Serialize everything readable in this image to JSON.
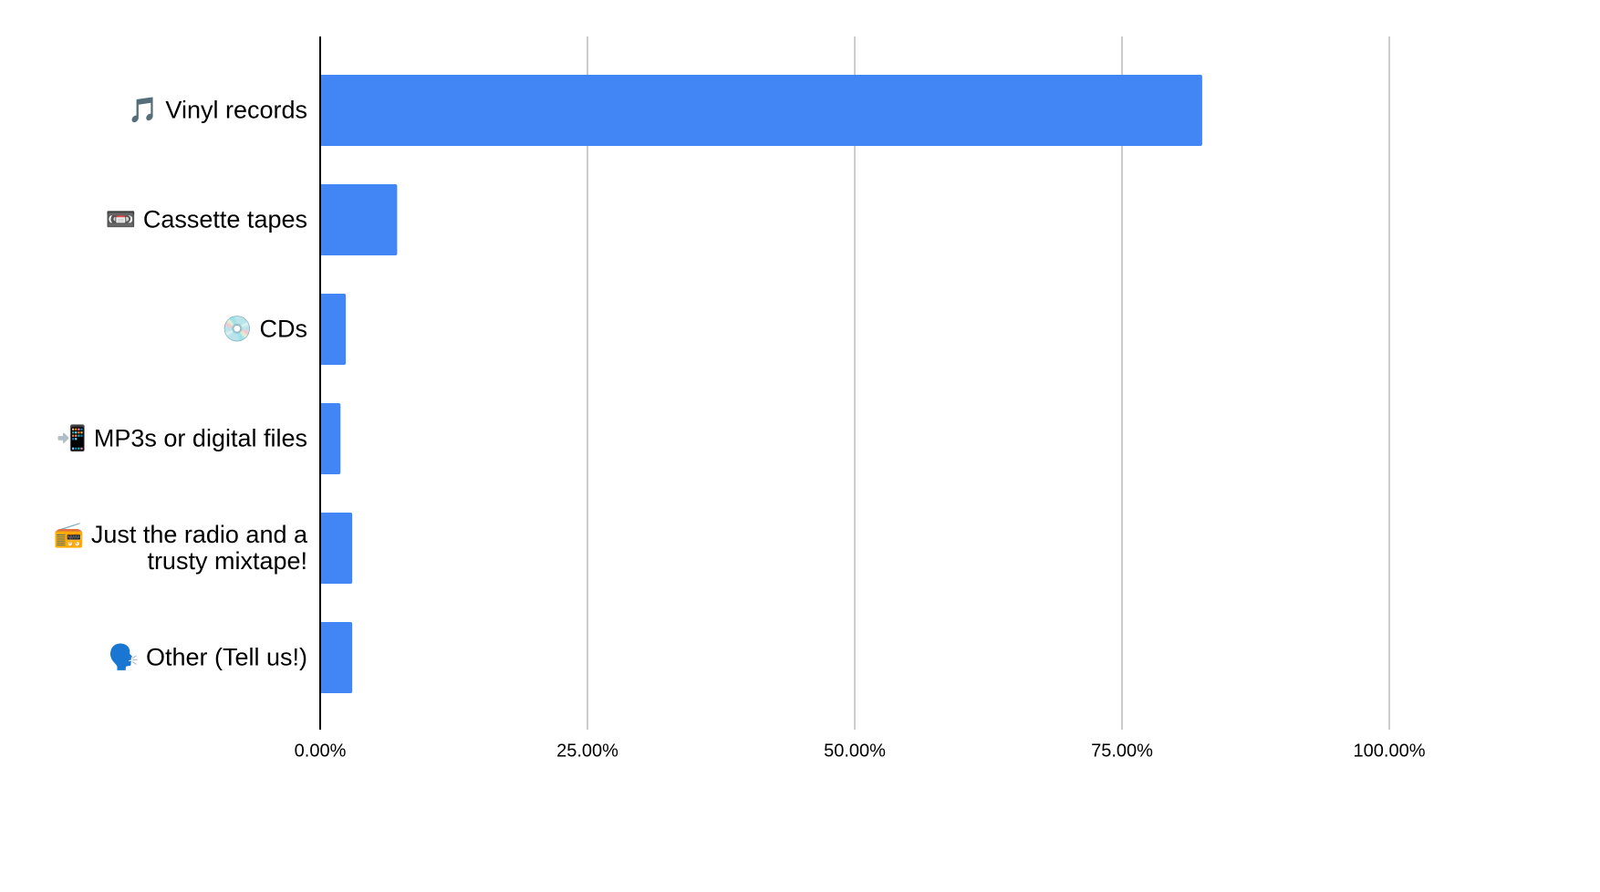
{
  "chart_data": {
    "type": "bar",
    "orientation": "horizontal",
    "categories": [
      "🎵 Vinyl records",
      "📼 Cassette tapes",
      "💿 CDs",
      "📲 MP3s or digital files",
      "📻 Just the radio and a trusty mixtape!",
      "🗣️ Other (Tell us!)"
    ],
    "values": [
      82.5,
      7.2,
      2.4,
      1.9,
      3.0,
      3.0
    ],
    "color": "#4285f4",
    "xlim": [
      0,
      100
    ],
    "xticks": [
      {
        "value": 0,
        "label": "0.00%"
      },
      {
        "value": 25,
        "label": "25.00%"
      },
      {
        "value": 50,
        "label": "50.00%"
      },
      {
        "value": 75,
        "label": "75.00%"
      },
      {
        "value": 100,
        "label": "100.00%"
      }
    ],
    "grid": true
  }
}
